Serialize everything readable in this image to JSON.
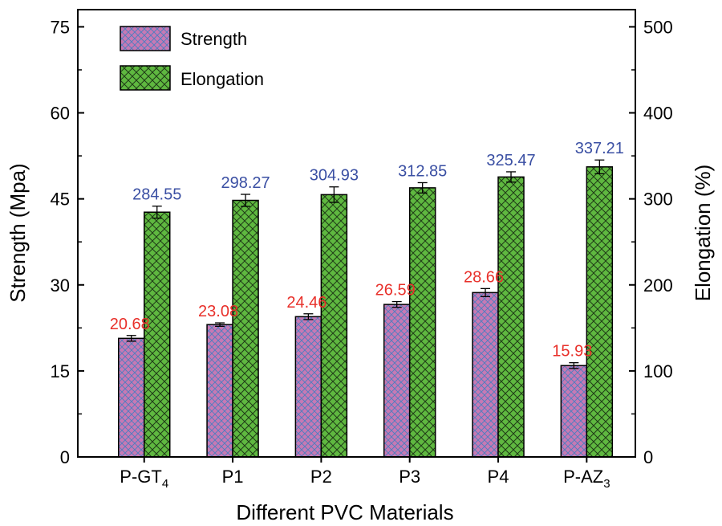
{
  "chart_data": {
    "type": "bar",
    "title": "",
    "xlabel": "Different PVC Materials",
    "ylabel": "Strength (Mpa)",
    "y2label": "Elongation (%)",
    "categories": [
      {
        "base": "P-GT",
        "sub": "4"
      },
      {
        "base": "P1",
        "sub": ""
      },
      {
        "base": "P2",
        "sub": ""
      },
      {
        "base": "P3",
        "sub": ""
      },
      {
        "base": "P4",
        "sub": ""
      },
      {
        "base": "P-AZ",
        "sub": "3"
      }
    ],
    "ylim": [
      0,
      78
    ],
    "y2lim": [
      0,
      520
    ],
    "yticks": [
      "0",
      "15",
      "30",
      "45",
      "60",
      "75"
    ],
    "y2ticks": [
      "0",
      "100",
      "200",
      "300",
      "400",
      "500"
    ],
    "series": [
      {
        "name": "Strength",
        "axis": "left",
        "values": [
          20.68,
          23.08,
          24.46,
          26.59,
          28.66,
          15.93
        ],
        "labels": [
          "20.68",
          "23.08",
          "24.46",
          "26.59",
          "28.66",
          "15.93"
        ],
        "errors": [
          0.5,
          0.3,
          0.5,
          0.5,
          0.7,
          0.5
        ],
        "color": "#c779b4",
        "pattern_color": "#4a7fc0",
        "label_color": "#e8302a"
      },
      {
        "name": "Elongation",
        "axis": "right",
        "values": [
          284.55,
          298.27,
          304.93,
          312.85,
          325.47,
          337.21
        ],
        "labels": [
          "284.55",
          "298.27",
          "304.93",
          "312.85",
          "325.47",
          "337.21"
        ],
        "errors": [
          7,
          7,
          9,
          6,
          6,
          8
        ],
        "color": "#5fb840",
        "pattern_color": "#1f3b17",
        "label_color": "#3a4fa3"
      }
    ],
    "legend_position": "top-left",
    "grid": false
  }
}
